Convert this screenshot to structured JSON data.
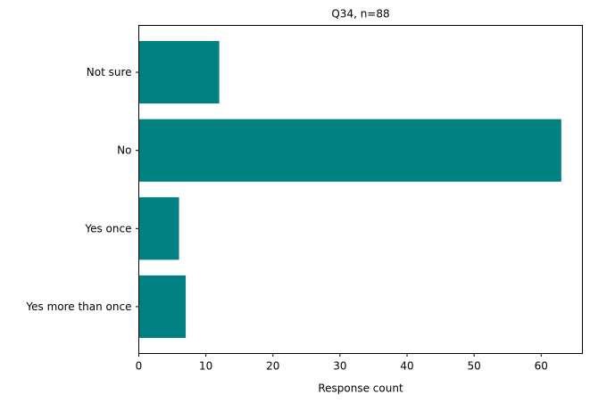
{
  "chart_data": {
    "type": "bar",
    "orientation": "horizontal",
    "title": "Q34, n=88",
    "xlabel": "Response count",
    "ylabel": "",
    "categories": [
      "Yes more than once",
      "Yes once",
      "No",
      "Not sure"
    ],
    "values": [
      7,
      6,
      63,
      12
    ],
    "xlim": [
      0,
      66.15
    ],
    "xticks": [
      0,
      10,
      20,
      30,
      40,
      50,
      60
    ],
    "bar_color": "#008080",
    "grid": false,
    "legend": "none"
  }
}
